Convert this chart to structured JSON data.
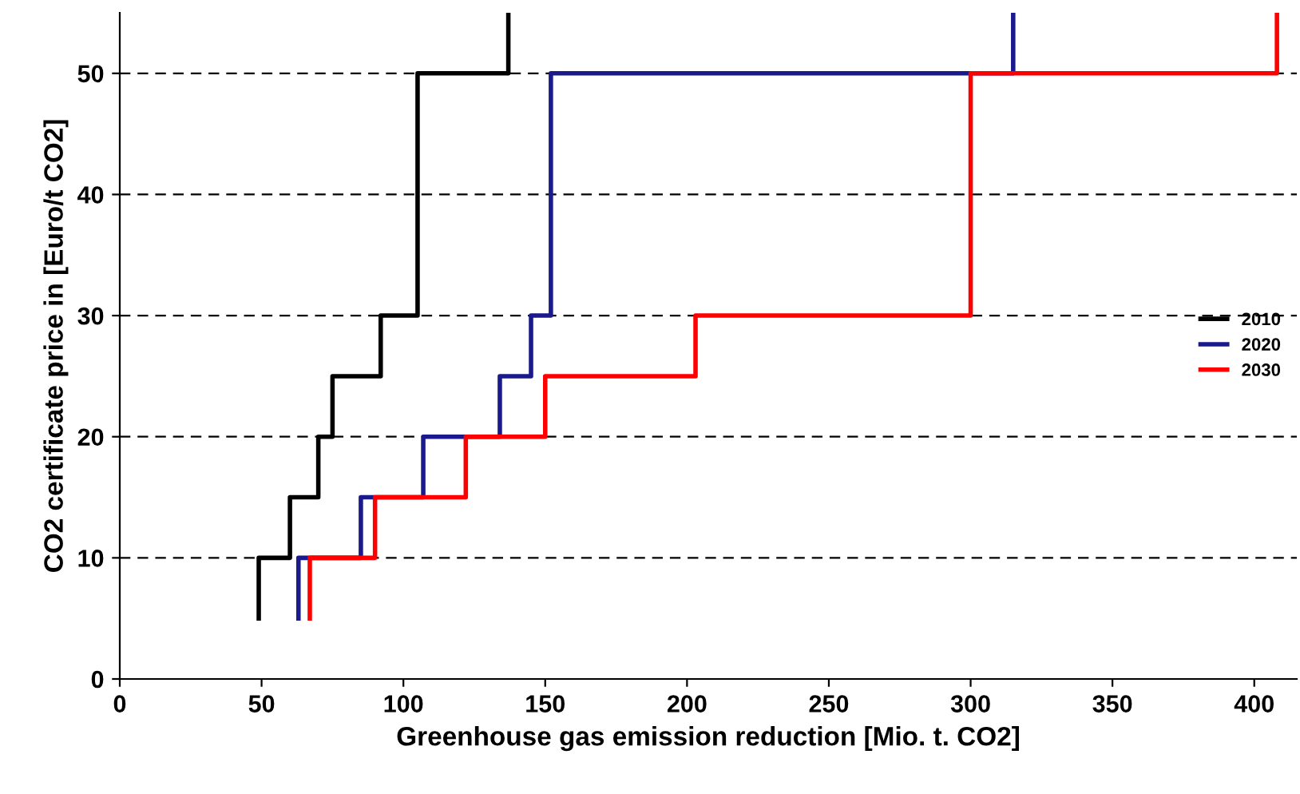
{
  "chart_data": {
    "type": "step",
    "xlabel": "Greenhouse gas emission reduction [Mio. t. CO2]",
    "ylabel": "CO2 certificate price in [Euro/t CO2]",
    "xlim": [
      0,
      415
    ],
    "ylim": [
      0,
      55
    ],
    "xticks": [
      0,
      50,
      100,
      150,
      200,
      250,
      300,
      350,
      400
    ],
    "yticks": [
      0,
      10,
      20,
      30,
      40,
      50
    ],
    "grid": "y",
    "legend": "right",
    "line_style": "solid",
    "series": [
      {
        "name": "2010",
        "color": "#000000",
        "x": [
          49,
          49,
          60,
          70,
          75,
          92,
          105,
          137
        ],
        "values": [
          5,
          10,
          15,
          20,
          25,
          30,
          50,
          55
        ]
      },
      {
        "name": "2020",
        "color": "#1a1a8c",
        "x": [
          63,
          63,
          85,
          107,
          134,
          145,
          152,
          315
        ],
        "values": [
          5,
          10,
          15,
          20,
          25,
          30,
          50,
          55
        ]
      },
      {
        "name": "2030",
        "color": "#ff0000",
        "x": [
          67,
          67,
          90,
          122,
          150,
          203,
          300,
          408
        ],
        "values": [
          5,
          10,
          15,
          20,
          25,
          30,
          50,
          55
        ]
      }
    ]
  }
}
